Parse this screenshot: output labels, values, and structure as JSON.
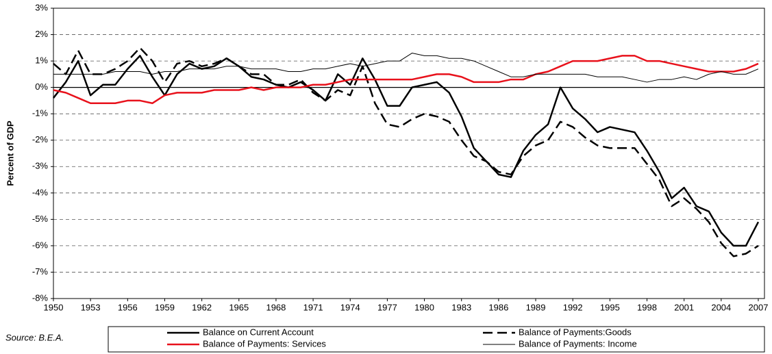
{
  "chart_data": {
    "type": "line",
    "y_label": "Percent of GDP",
    "source": "Source: B.E.A.",
    "x": [
      1950,
      1951,
      1952,
      1953,
      1954,
      1955,
      1956,
      1957,
      1958,
      1959,
      1960,
      1961,
      1962,
      1963,
      1964,
      1965,
      1966,
      1967,
      1968,
      1969,
      1970,
      1971,
      1972,
      1973,
      1974,
      1975,
      1976,
      1977,
      1978,
      1979,
      1980,
      1981,
      1982,
      1983,
      1984,
      1985,
      1986,
      1987,
      1988,
      1989,
      1990,
      1991,
      1992,
      1993,
      1994,
      1995,
      1996,
      1997,
      1998,
      1999,
      2000,
      2001,
      2002,
      2003,
      2004,
      2005,
      2006,
      2007
    ],
    "xlim": [
      1950,
      2007.5
    ],
    "xticks": [
      1950,
      1953,
      1956,
      1959,
      1962,
      1965,
      1968,
      1971,
      1974,
      1977,
      1980,
      1983,
      1986,
      1989,
      1992,
      1995,
      1998,
      2001,
      2004,
      2007
    ],
    "ylim": [
      -8,
      3
    ],
    "yticks": [
      {
        "value": 3,
        "label": "3%"
      },
      {
        "value": 2,
        "label": "2%"
      },
      {
        "value": 1,
        "label": "1%"
      },
      {
        "value": 0,
        "label": "0%"
      },
      {
        "value": -1,
        "label": "-1%"
      },
      {
        "value": -2,
        "label": "-2%"
      },
      {
        "value": -3,
        "label": "-3%"
      },
      {
        "value": -4,
        "label": "-4%"
      },
      {
        "value": -5,
        "label": "-5%"
      },
      {
        "value": -6,
        "label": "-6%"
      },
      {
        "value": -7,
        "label": "-7%"
      },
      {
        "value": -8,
        "label": "-8%"
      }
    ],
    "grid": true,
    "legend": "bottom",
    "series": [
      {
        "name": "Balance on Current Account",
        "color": "#000000",
        "width": 2.5,
        "dash": false,
        "values": [
          -0.4,
          0.2,
          1.0,
          -0.3,
          0.1,
          0.1,
          0.7,
          1.2,
          0.4,
          -0.3,
          0.5,
          0.9,
          0.7,
          0.8,
          1.1,
          0.8,
          0.4,
          0.3,
          0.1,
          0.0,
          0.2,
          -0.1,
          -0.5,
          0.5,
          0.1,
          1.1,
          0.3,
          -0.7,
          -0.7,
          0.0,
          0.1,
          0.2,
          -0.2,
          -1.1,
          -2.3,
          -2.8,
          -3.3,
          -3.4,
          -2.4,
          -1.8,
          -1.4,
          0.0,
          -0.8,
          -1.2,
          -1.7,
          -1.5,
          -1.6,
          -1.7,
          -2.4,
          -3.2,
          -4.2,
          -3.8,
          -4.5,
          -4.7,
          -5.5,
          -6.0,
          -6.0,
          -5.1
        ]
      },
      {
        "name": "Balance of Payments:Goods",
        "color": "#000000",
        "width": 2.5,
        "dash": true,
        "values": [
          0.9,
          0.5,
          1.4,
          0.5,
          0.5,
          0.7,
          1.0,
          1.5,
          1.0,
          0.2,
          0.9,
          1.0,
          0.8,
          0.9,
          1.1,
          0.8,
          0.5,
          0.5,
          0.1,
          0.1,
          0.3,
          -0.2,
          -0.5,
          -0.1,
          -0.3,
          0.8,
          -0.6,
          -1.4,
          -1.5,
          -1.2,
          -1.0,
          -1.1,
          -1.3,
          -2.0,
          -2.6,
          -2.8,
          -3.2,
          -3.3,
          -2.6,
          -2.2,
          -2.0,
          -1.3,
          -1.5,
          -1.9,
          -2.2,
          -2.3,
          -2.3,
          -2.3,
          -2.9,
          -3.5,
          -4.5,
          -4.2,
          -4.6,
          -5.1,
          -5.9,
          -6.4,
          -6.3,
          -6.0
        ]
      },
      {
        "name": "Balance of Payments: Services",
        "color": "#e8111b",
        "width": 2.5,
        "dash": false,
        "values": [
          -0.1,
          -0.2,
          -0.4,
          -0.6,
          -0.6,
          -0.6,
          -0.5,
          -0.5,
          -0.6,
          -0.3,
          -0.2,
          -0.2,
          -0.2,
          -0.1,
          -0.1,
          -0.1,
          0.0,
          -0.1,
          0.0,
          0.0,
          0.0,
          0.1,
          0.1,
          0.2,
          0.3,
          0.3,
          0.3,
          0.3,
          0.3,
          0.3,
          0.4,
          0.5,
          0.5,
          0.4,
          0.2,
          0.2,
          0.2,
          0.3,
          0.3,
          0.5,
          0.6,
          0.8,
          1.0,
          1.0,
          1.0,
          1.1,
          1.2,
          1.2,
          1.0,
          1.0,
          0.9,
          0.8,
          0.7,
          0.6,
          0.6,
          0.6,
          0.7,
          0.9
        ]
      },
      {
        "name": "Balance of Payments: Income",
        "color": "#000000",
        "width": 1,
        "dash": false,
        "values": [
          0.5,
          0.5,
          0.5,
          0.5,
          0.5,
          0.6,
          0.6,
          0.6,
          0.5,
          0.6,
          0.6,
          0.7,
          0.7,
          0.7,
          0.8,
          0.8,
          0.7,
          0.7,
          0.7,
          0.6,
          0.6,
          0.7,
          0.7,
          0.8,
          0.9,
          0.8,
          0.9,
          1.0,
          1.0,
          1.3,
          1.2,
          1.2,
          1.1,
          1.1,
          1.0,
          0.8,
          0.6,
          0.4,
          0.4,
          0.5,
          0.5,
          0.5,
          0.5,
          0.5,
          0.4,
          0.4,
          0.4,
          0.3,
          0.2,
          0.3,
          0.3,
          0.4,
          0.3,
          0.5,
          0.6,
          0.5,
          0.5,
          0.7
        ]
      }
    ]
  }
}
